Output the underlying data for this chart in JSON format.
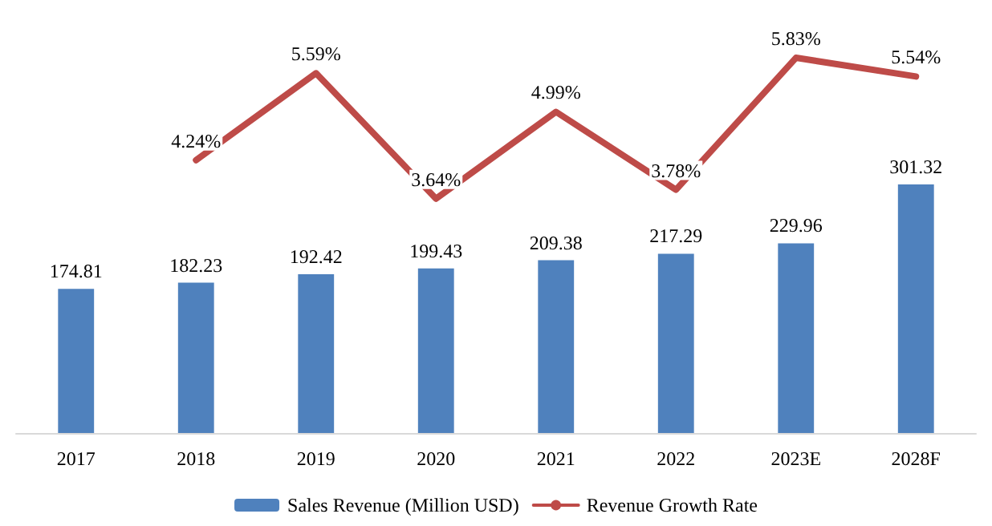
{
  "chart_data": {
    "type": "bar",
    "categories": [
      "2017",
      "2018",
      "2019",
      "2020",
      "2021",
      "2022",
      "2023E",
      "2028F"
    ],
    "series": [
      {
        "name": "Sales Revenue (Million USD)",
        "color": "#4f81bd",
        "values": [
          174.81,
          182.23,
          192.42,
          199.43,
          209.38,
          217.29,
          229.96,
          301.32
        ],
        "data_labels": true
      },
      {
        "name": "Revenue Growth Rate",
        "type": "line",
        "axis": "y2",
        "color": "#be4b48",
        "values": [
          null,
          4.24,
          5.59,
          3.64,
          4.99,
          3.78,
          5.83,
          5.54
        ],
        "value_labels": [
          null,
          "4.24%",
          "5.59%",
          "3.64%",
          "4.99%",
          "3.78%",
          "5.83%",
          "5.54%"
        ]
      }
    ],
    "tick_labels": "x",
    "legend": "bottom",
    "marker": "none",
    "line_style": "solid"
  }
}
